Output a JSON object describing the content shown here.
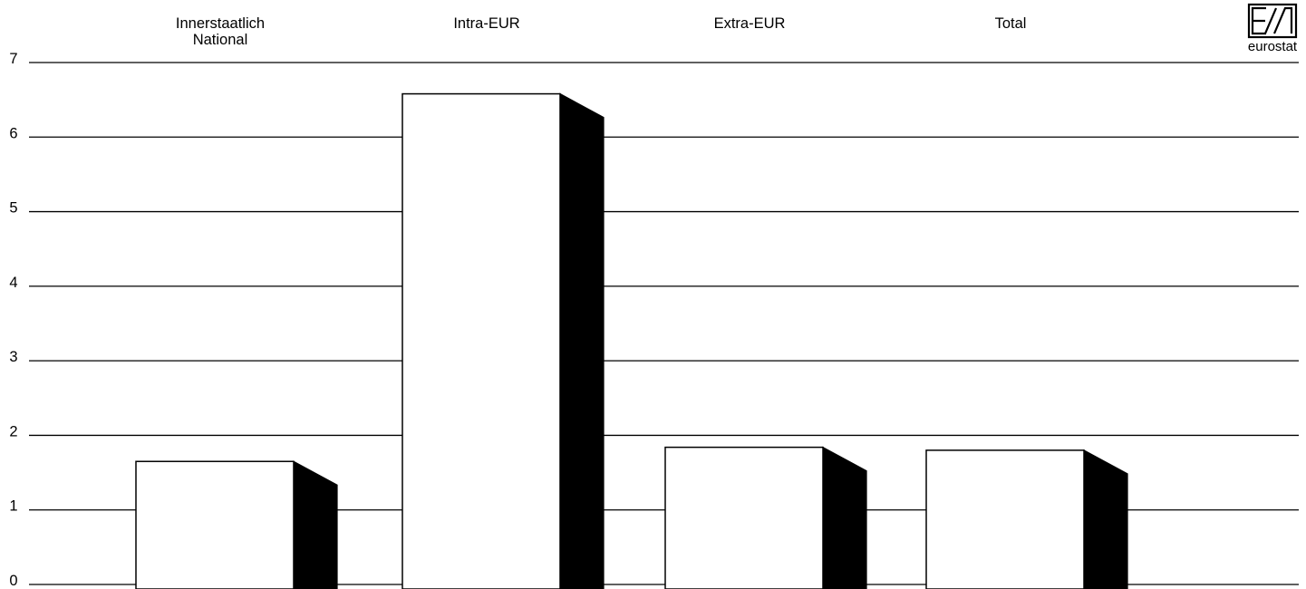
{
  "chart_data": {
    "type": "bar",
    "categories": [
      "Innerstaatlich National",
      "Intra-EUR",
      "Extra-EUR",
      "Total"
    ],
    "category_label_lines": [
      [
        "Innerstaatlich",
        "National"
      ],
      [
        "Intra-EUR"
      ],
      [
        "Extra-EUR"
      ],
      [
        "Total"
      ]
    ],
    "values": [
      1.65,
      6.58,
      1.84,
      1.8
    ],
    "ylim": [
      0,
      7
    ],
    "yticks": [
      "0",
      "1",
      "2",
      "3",
      "4",
      "5",
      "6",
      "7"
    ],
    "grid": true,
    "bar_style": "3d white face with black side",
    "colors": {
      "bar_face": "#ffffff",
      "bar_side": "#000000",
      "grid": "#000000"
    }
  },
  "logo": {
    "name": "eurostat-logo",
    "text": "eurostat"
  }
}
